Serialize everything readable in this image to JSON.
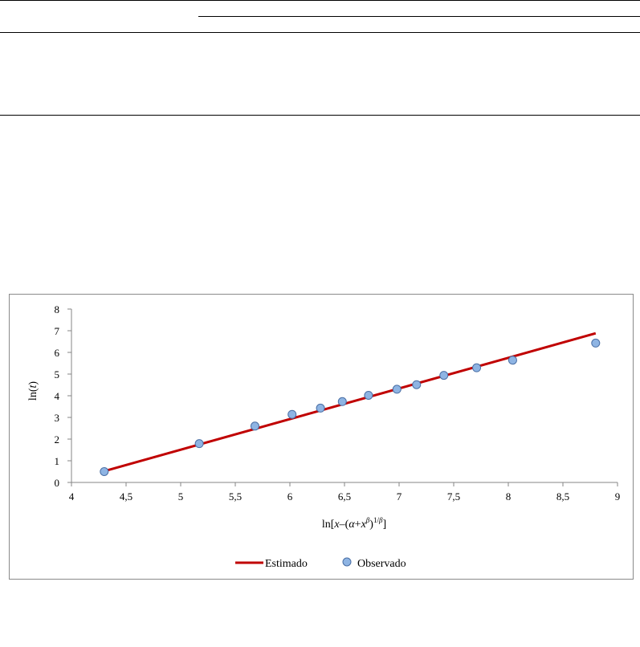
{
  "chart_data": {
    "type": "scatter",
    "xlabel": "ln[x–(α+x^β)^1/β]",
    "ylabel": "ln(t)",
    "xlim": [
      4,
      9
    ],
    "ylim": [
      0,
      8
    ],
    "x_ticks": [
      "4",
      "4,5",
      "5",
      "5,5",
      "6",
      "6,5",
      "7",
      "7,5",
      "8",
      "8,5",
      "9"
    ],
    "y_ticks": [
      "0",
      "1",
      "2",
      "3",
      "4",
      "5",
      "6",
      "7",
      "8"
    ],
    "grid": false,
    "legend_position": "bottom",
    "series": [
      {
        "name": "Estimado",
        "type": "line",
        "color": "#c00000",
        "x": [
          4.3,
          8.8
        ],
        "y": [
          0.52,
          6.88
        ]
      },
      {
        "name": "Observado",
        "type": "scatter",
        "color": "#8eb4e3",
        "x": [
          4.3,
          5.17,
          5.68,
          6.02,
          6.28,
          6.48,
          6.72,
          6.98,
          7.16,
          7.41,
          7.71,
          8.04,
          8.8
        ],
        "y": [
          0.5,
          1.79,
          2.6,
          3.14,
          3.43,
          3.73,
          4.02,
          4.3,
          4.51,
          4.94,
          5.29,
          5.64,
          6.43
        ]
      }
    ]
  }
}
